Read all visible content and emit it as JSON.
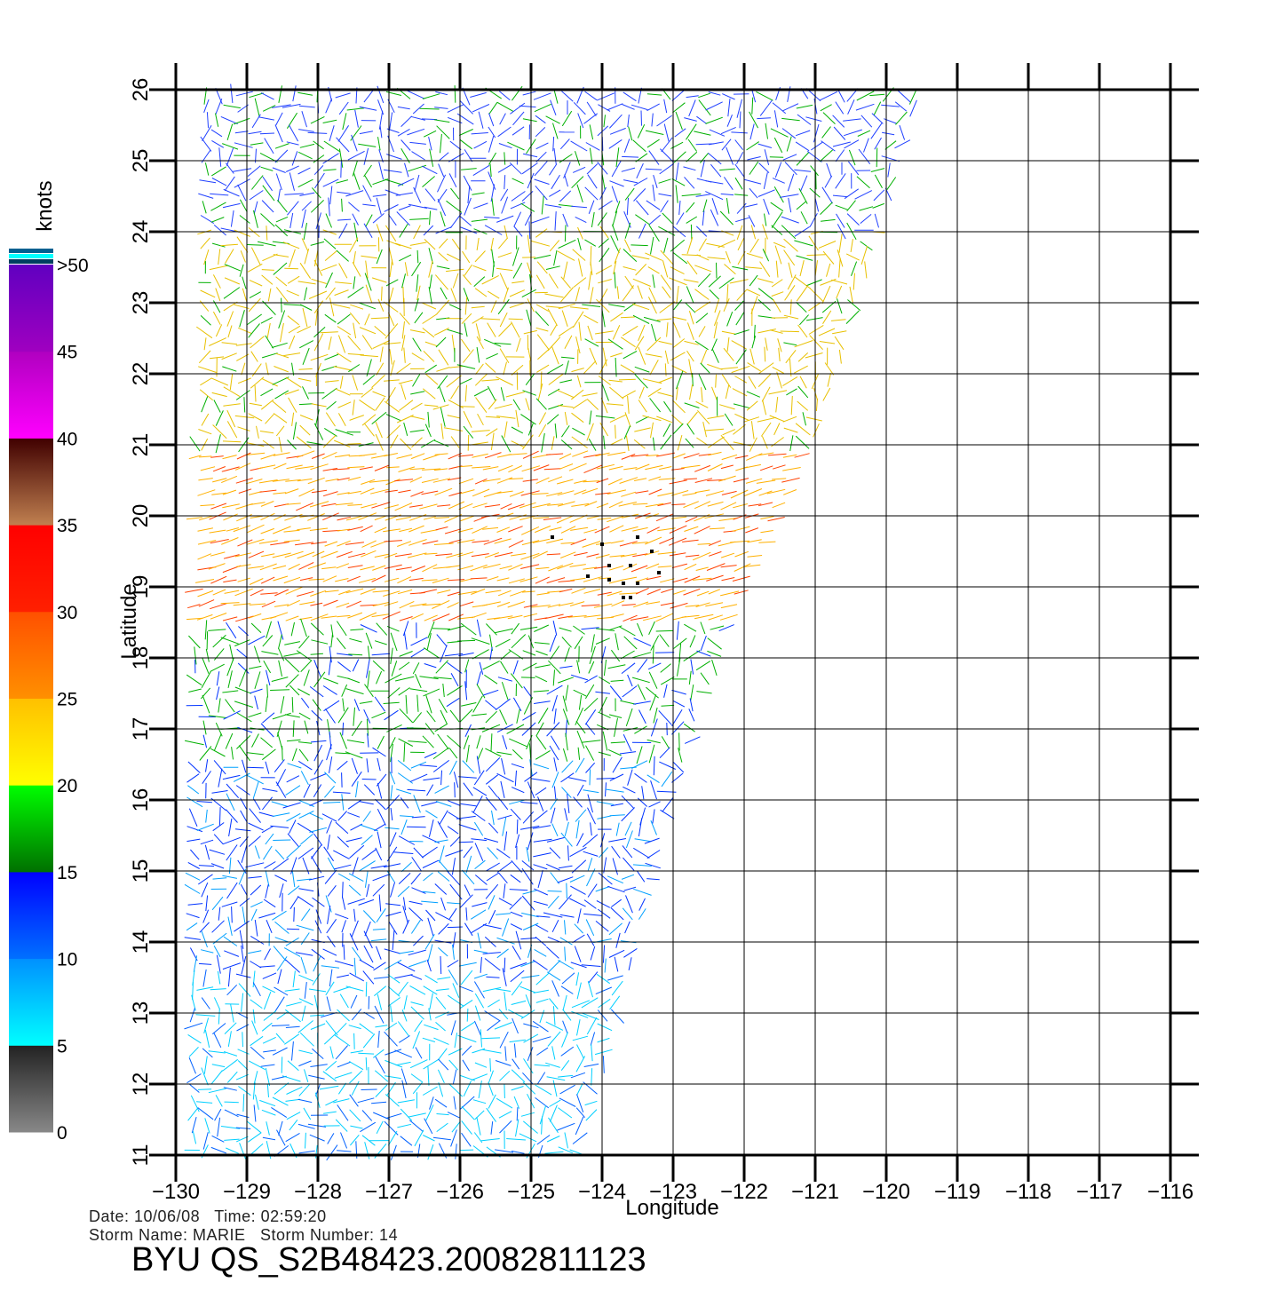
{
  "chart_data": {
    "type": "scatter",
    "plot_kind": "wind-vector field (colored line segments)",
    "xlabel": "Longitude",
    "ylabel": "Latitude",
    "xlim": [
      -130,
      -116
    ],
    "ylim": [
      11,
      26
    ],
    "x_ticks": [
      -130,
      -129,
      -128,
      -127,
      -126,
      -125,
      -124,
      -123,
      -122,
      -121,
      -120,
      -119,
      -118,
      -117,
      -116
    ],
    "y_ticks": [
      11,
      12,
      13,
      14,
      15,
      16,
      17,
      18,
      19,
      20,
      21,
      22,
      23,
      24,
      25,
      26
    ],
    "x_tick_labels": [
      "−130",
      "−129",
      "−128",
      "−127",
      "−126",
      "−125",
      "−124",
      "−123",
      "−122",
      "−121",
      "−120",
      "−119",
      "−118",
      "−117",
      "−116"
    ],
    "y_tick_labels": [
      "11",
      "12",
      "13",
      "14",
      "15",
      "16",
      "17",
      "18",
      "19",
      "20",
      "21",
      "22",
      "23",
      "24",
      "25",
      "26"
    ],
    "grid": true,
    "swath_edge": [
      [
        -129.7,
        26
      ],
      [
        -119.5,
        26
      ],
      [
        -121,
        21
      ],
      [
        -121.5,
        20
      ],
      [
        -122.2,
        18.5
      ],
      [
        -122.5,
        17.5
      ],
      [
        -123,
        16
      ],
      [
        -123.5,
        14
      ],
      [
        -124,
        12
      ],
      [
        -124.3,
        11
      ],
      [
        -129.8,
        11
      ]
    ],
    "wind_regions": [
      {
        "lat_range": [
          11,
          13.5
        ],
        "speed_knots": 9,
        "color": "#00cfff"
      },
      {
        "lat_range": [
          13.5,
          16.5
        ],
        "speed_knots": 12,
        "color": "#0033ff"
      },
      {
        "lat_range": [
          16.5,
          18.5
        ],
        "speed_knots": 17,
        "color": "#00b000"
      },
      {
        "lat_range": [
          18.5,
          21
        ],
        "speed_knots": 24,
        "color": "#ffb000"
      },
      {
        "lat_range": [
          21,
          24
        ],
        "speed_knots": 19,
        "color": "#e8c000"
      },
      {
        "lat_range": [
          24,
          26
        ],
        "speed_knots": 13,
        "color": "#2040ff"
      }
    ],
    "storm_center_marks": [
      [
        -124.7,
        19.7
      ],
      [
        -124,
        19.6
      ],
      [
        -123.5,
        19.7
      ],
      [
        -123.9,
        19.3
      ],
      [
        -123.6,
        19.3
      ],
      [
        -123.3,
        19.5
      ],
      [
        -124.2,
        19.15
      ],
      [
        -123.9,
        19.1
      ],
      [
        -123.7,
        19.05
      ],
      [
        -123.5,
        19.05
      ],
      [
        -123.2,
        19.2
      ],
      [
        -123.7,
        18.85
      ],
      [
        -123.6,
        18.85
      ]
    ],
    "colorbar": {
      "title": "knots",
      "labels": [
        "0",
        "5",
        "10",
        "15",
        "20",
        "25",
        "30",
        "35",
        "40",
        "45",
        ">50"
      ],
      "segments": [
        {
          "from": 0,
          "to": 5,
          "colors": [
            "#888888",
            "#222222"
          ]
        },
        {
          "from": 5,
          "to": 10,
          "colors": [
            "#00ffff",
            "#0090ff"
          ]
        },
        {
          "from": 10,
          "to": 15,
          "colors": [
            "#0070ff",
            "#0000ff"
          ]
        },
        {
          "from": 15,
          "to": 20,
          "colors": [
            "#007000",
            "#00ff00"
          ]
        },
        {
          "from": 20,
          "to": 25,
          "colors": [
            "#ffff00",
            "#ffc000"
          ]
        },
        {
          "from": 25,
          "to": 30,
          "colors": [
            "#ff9000",
            "#ff5000"
          ]
        },
        {
          "from": 30,
          "to": 35,
          "colors": [
            "#ff2000",
            "#ff0000"
          ]
        },
        {
          "from": 35,
          "to": 40,
          "colors": [
            "#c08050",
            "#400000"
          ]
        },
        {
          "from": 40,
          "to": 45,
          "colors": [
            "#ff00ff",
            "#b000c0"
          ]
        },
        {
          "from": 45,
          "to": 50,
          "colors": [
            "#a000c0",
            "#6000c0"
          ]
        }
      ],
      "top_stripes": [
        "#006090",
        "#00ffff",
        "#004060"
      ]
    }
  },
  "footer": {
    "date_line": "Date: 10/06/08   Time: 02:59:20",
    "storm_line": "Storm Name: MARIE   Storm Number: 14",
    "product_id": "BYU QS_S2B48423.20082811123"
  }
}
